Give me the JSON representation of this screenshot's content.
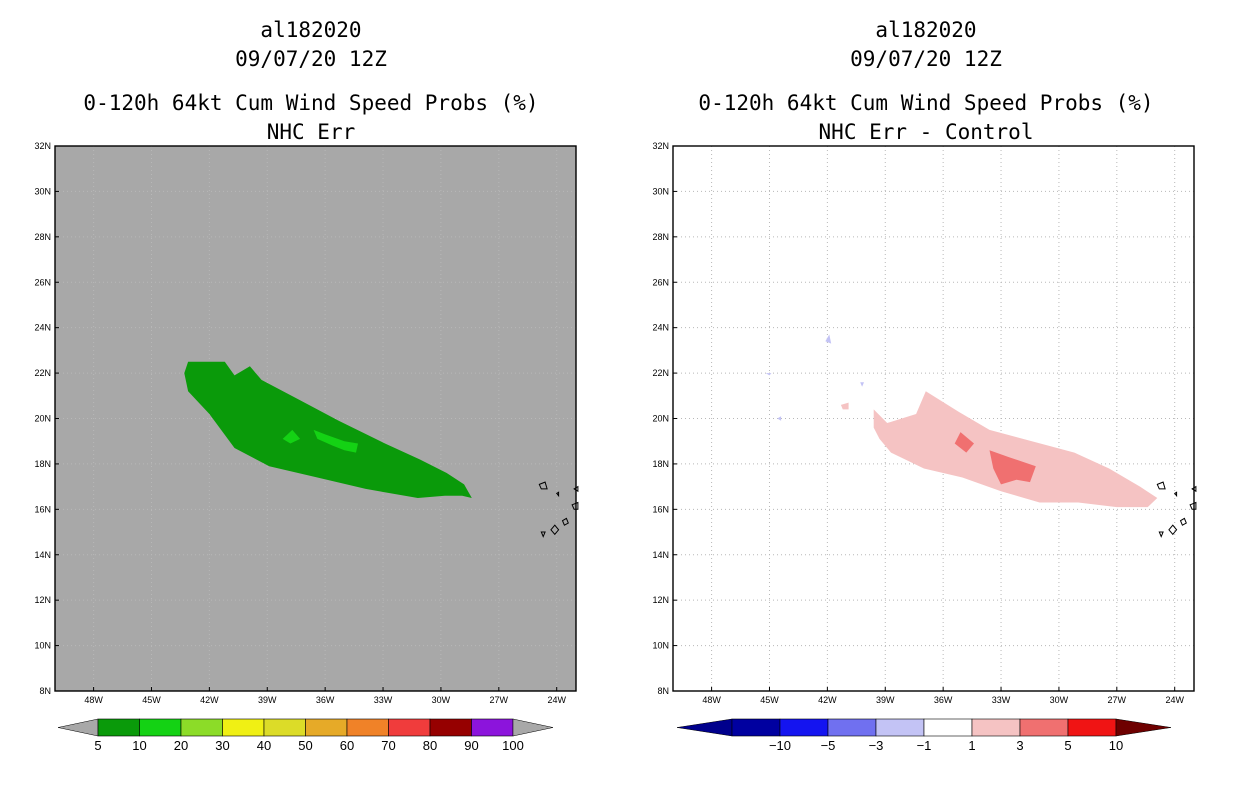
{
  "chart_data": [
    {
      "type": "heatmap",
      "panel": "left",
      "title_lines": [
        "al182020",
        "09/07/20 12Z",
        "0-120h 64kt Cum Wind Speed Probs (%)",
        "NHC Err"
      ],
      "lon_range": [
        -50,
        -23
      ],
      "lat_range": [
        8,
        32
      ],
      "x_ticks": [
        "48W",
        "45W",
        "42W",
        "39W",
        "36W",
        "33W",
        "30W",
        "27W",
        "24W"
      ],
      "x_tick_values": [
        -48,
        -45,
        -42,
        -39,
        -36,
        -33,
        -30,
        -27,
        -24
      ],
      "y_ticks": [
        "8N",
        "10N",
        "12N",
        "14N",
        "16N",
        "18N",
        "20N",
        "22N",
        "24N",
        "26N",
        "28N",
        "30N",
        "32N"
      ],
      "y_tick_values": [
        8,
        10,
        12,
        14,
        16,
        18,
        20,
        22,
        24,
        26,
        28,
        30,
        32
      ],
      "grid": "dotted",
      "background_color": "#a8a8a8",
      "regions": [
        {
          "name": "probability 5-10%",
          "color": "#0a9a0a",
          "polygon": [
            [
              -43.1,
              22.5
            ],
            [
              -41.2,
              22.5
            ],
            [
              -40.7,
              21.9
            ],
            [
              -39.9,
              22.3
            ],
            [
              -39.3,
              21.7
            ],
            [
              -37.3,
              20.8
            ],
            [
              -35.3,
              19.9
            ],
            [
              -32.9,
              18.9
            ],
            [
              -31.1,
              18.2
            ],
            [
              -29.7,
              17.6
            ],
            [
              -28.8,
              17.1
            ],
            [
              -28.4,
              16.5
            ],
            [
              -28.9,
              16.6
            ],
            [
              -29.8,
              16.6
            ],
            [
              -31.2,
              16.5
            ],
            [
              -33.9,
              16.9
            ],
            [
              -36.4,
              17.4
            ],
            [
              -38.9,
              17.9
            ],
            [
              -40.7,
              18.7
            ],
            [
              -42.0,
              20.2
            ],
            [
              -43.1,
              21.2
            ],
            [
              -43.3,
              22.0
            ]
          ]
        },
        {
          "name": "probability 10-20% (west)",
          "color": "#14d214",
          "polygon": [
            [
              -38.2,
              19.1
            ],
            [
              -37.7,
              19.5
            ],
            [
              -37.3,
              19.1
            ],
            [
              -37.8,
              18.9
            ]
          ]
        },
        {
          "name": "probability 10-20% (east)",
          "color": "#14d214",
          "polygon": [
            [
              -36.6,
              19.5
            ],
            [
              -36.0,
              19.3
            ],
            [
              -35.0,
              19.0
            ],
            [
              -34.3,
              18.9
            ],
            [
              -34.4,
              18.5
            ],
            [
              -35.0,
              18.6
            ],
            [
              -35.6,
              18.8
            ],
            [
              -36.4,
              19.1
            ]
          ]
        }
      ],
      "colorbar": {
        "type": "categorical",
        "labels": [
          "5",
          "10",
          "20",
          "30",
          "40",
          "50",
          "60",
          "70",
          "80",
          "90",
          "100"
        ],
        "colors": [
          "#0a9a0a",
          "#14d214",
          "#8cdc28",
          "#f0f014",
          "#dcdc28",
          "#e6aa28",
          "#f08228",
          "#f03c3c",
          "#960000",
          "#8c14dc"
        ],
        "under_color": "#a8a8a8",
        "over_color": "#a8a8a8"
      }
    },
    {
      "type": "heatmap",
      "panel": "right",
      "title_lines": [
        "al182020",
        "09/07/20 12Z",
        "0-120h 64kt Cum Wind Speed Probs (%)",
        "NHC Err - Control"
      ],
      "lon_range": [
        -50,
        -23
      ],
      "lat_range": [
        8,
        32
      ],
      "x_ticks": [
        "48W",
        "45W",
        "42W",
        "39W",
        "36W",
        "33W",
        "30W",
        "27W",
        "24W"
      ],
      "x_tick_values": [
        -48,
        -45,
        -42,
        -39,
        -36,
        -33,
        -30,
        -27,
        -24
      ],
      "y_ticks": [
        "8N",
        "10N",
        "12N",
        "14N",
        "16N",
        "18N",
        "20N",
        "22N",
        "24N",
        "26N",
        "28N",
        "30N",
        "32N"
      ],
      "y_tick_values": [
        8,
        10,
        12,
        14,
        16,
        18,
        20,
        22,
        24,
        26,
        28,
        30,
        32
      ],
      "grid": "dotted",
      "background_color": "#ffffff",
      "regions": [
        {
          "name": "difference 1-3",
          "color": "#f5c3c3",
          "polygon": [
            [
              -39.6,
              20.4
            ],
            [
              -38.9,
              19.8
            ],
            [
              -37.4,
              20.2
            ],
            [
              -36.9,
              21.2
            ],
            [
              -35.2,
              20.3
            ],
            [
              -33.6,
              19.5
            ],
            [
              -31.4,
              19.0
            ],
            [
              -29.2,
              18.5
            ],
            [
              -27.4,
              17.8
            ],
            [
              -25.8,
              17.0
            ],
            [
              -24.9,
              16.5
            ],
            [
              -25.4,
              16.1
            ],
            [
              -27.0,
              16.1
            ],
            [
              -29.0,
              16.3
            ],
            [
              -31.0,
              16.3
            ],
            [
              -33.0,
              16.8
            ],
            [
              -35.0,
              17.4
            ],
            [
              -37.0,
              17.8
            ],
            [
              -38.7,
              18.5
            ],
            [
              -39.3,
              19.1
            ],
            [
              -39.6,
              19.6
            ]
          ]
        },
        {
          "name": "difference 3-5 (west)",
          "color": "#f07070",
          "polygon": [
            [
              -35.1,
              19.4
            ],
            [
              -34.4,
              18.9
            ],
            [
              -34.8,
              18.5
            ],
            [
              -35.4,
              18.9
            ]
          ]
        },
        {
          "name": "difference 3-5 (east)",
          "color": "#f07070",
          "polygon": [
            [
              -33.6,
              18.6
            ],
            [
              -32.6,
              18.3
            ],
            [
              -31.2,
              17.9
            ],
            [
              -31.5,
              17.2
            ],
            [
              -32.2,
              17.3
            ],
            [
              -33.0,
              17.1
            ],
            [
              -33.4,
              17.8
            ]
          ]
        },
        {
          "name": "difference 1-3 speck",
          "color": "#f5c3c3",
          "polygon": [
            [
              -41.3,
              20.6
            ],
            [
              -40.9,
              20.7
            ],
            [
              -40.9,
              20.4
            ],
            [
              -41.2,
              20.4
            ]
          ]
        },
        {
          "name": "difference -3 to -1 speck 1",
          "color": "#c3c3f5",
          "polygon": [
            [
              -42.1,
              23.4
            ],
            [
              -41.9,
              23.7
            ],
            [
              -41.8,
              23.3
            ]
          ]
        },
        {
          "name": "difference -3 to -1 speck 2",
          "color": "#c3c3f5",
          "polygon": [
            [
              -44.6,
              20.0
            ],
            [
              -44.4,
              20.1
            ],
            [
              -44.4,
              19.9
            ]
          ]
        },
        {
          "name": "difference -3 to -1 speck 3",
          "color": "#c3c3f5",
          "polygon": [
            [
              -40.3,
              21.6
            ],
            [
              -40.1,
              21.6
            ],
            [
              -40.2,
              21.4
            ]
          ]
        },
        {
          "name": "difference -3 to -1 speck 4",
          "color": "#c3c3f5",
          "polygon": [
            [
              -45.2,
              22.0
            ],
            [
              -44.9,
              22.0
            ],
            [
              -45.0,
              21.9
            ]
          ]
        }
      ],
      "colorbar": {
        "type": "diverging",
        "labels": [
          "−10",
          "−5",
          "−3",
          "−1",
          "1",
          "3",
          "5",
          "10"
        ],
        "colors": [
          "#0000a0",
          "#1414f0",
          "#7070f0",
          "#c3c3f5",
          "#ffffff",
          "#f5c3c3",
          "#f07070",
          "#f01414"
        ],
        "under_color": "#00008c",
        "over_color": "#6e0000"
      }
    }
  ]
}
